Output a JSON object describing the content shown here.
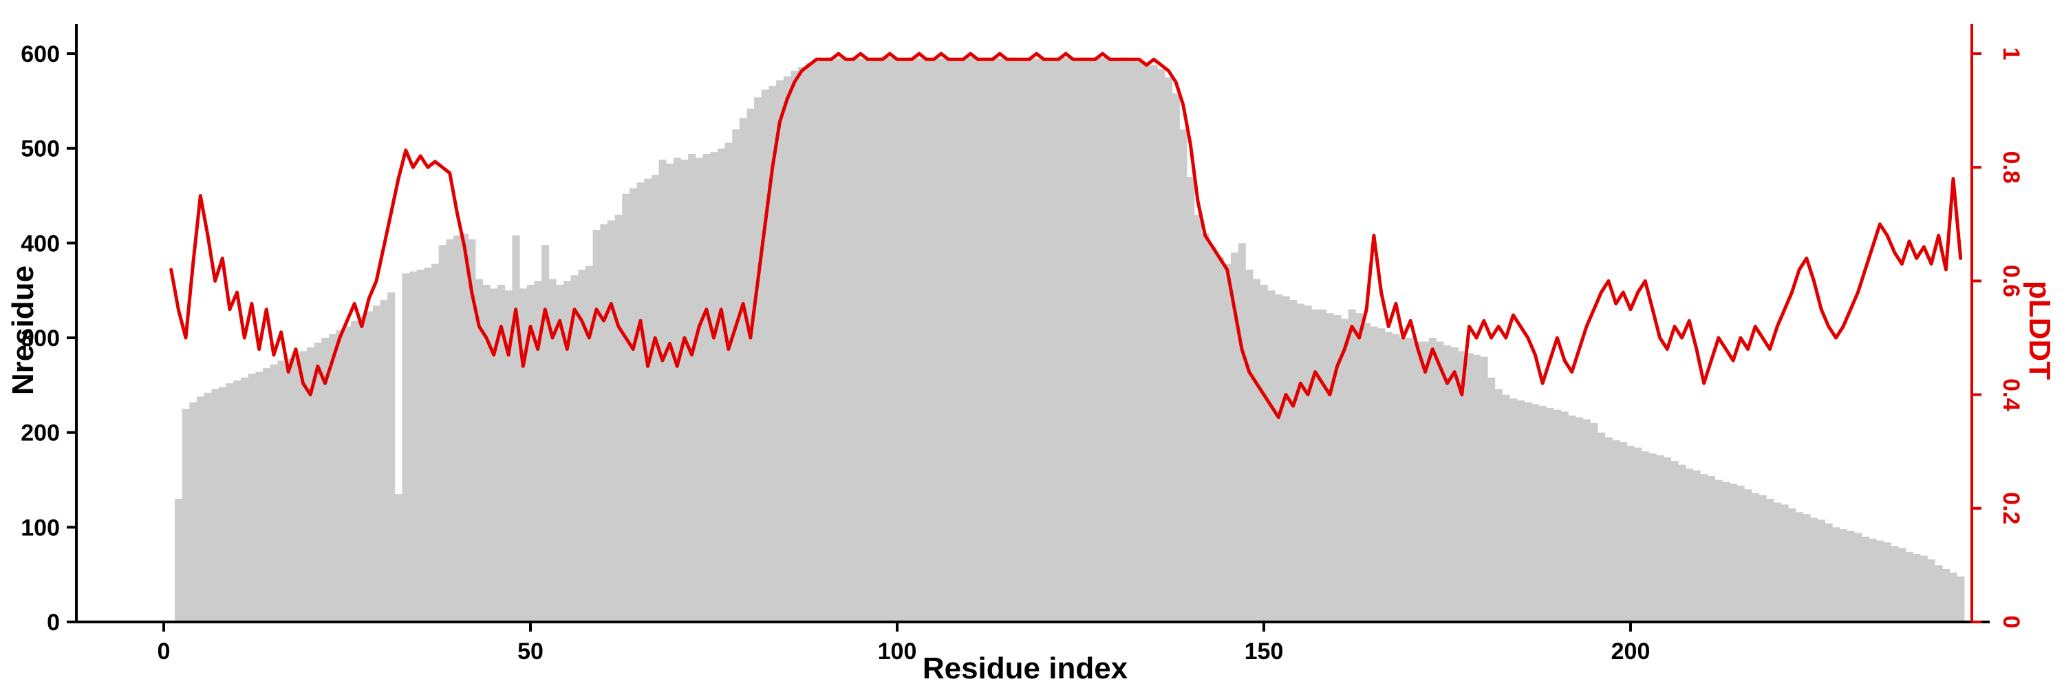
{
  "figure": {
    "background": "#ffffff",
    "bar_color": "#cccccc",
    "line_color": "#e00000",
    "axis_color": "#000000"
  },
  "axes": {
    "x": {
      "label": "Residue index",
      "ticks": [
        "0",
        "50",
        "100",
        "150",
        "200"
      ],
      "range": [
        0,
        246
      ]
    },
    "y_left": {
      "label": "Nresidue",
      "ticks": [
        "0",
        "100",
        "200",
        "300",
        "400",
        "500",
        "600"
      ],
      "range": [
        0,
        600
      ]
    },
    "y_right": {
      "label": "pLDDT",
      "ticks": [
        "0",
        "0.2",
        "0.4",
        "0.6",
        "0.8",
        "1"
      ],
      "range": [
        0,
        1
      ]
    }
  },
  "chart_data": {
    "type": "bar",
    "title": "",
    "xlabel": "Residue index",
    "ylabel_left": "Nresidue",
    "ylabel_right": "pLDDT",
    "xlim": [
      0,
      246
    ],
    "ylim_left": [
      0,
      600
    ],
    "ylim_right": [
      0,
      1
    ],
    "grid": false,
    "legend": "none",
    "x_is_index": true,
    "series": [
      {
        "name": "Nresidue",
        "type": "bar",
        "axis": "left",
        "color": "#cccccc",
        "values": [
          0,
          0,
          130,
          225,
          232,
          238,
          242,
          246,
          248,
          252,
          255,
          258,
          262,
          264,
          268,
          272,
          276,
          278,
          282,
          286,
          290,
          295,
          300,
          304,
          308,
          312,
          318,
          322,
          328,
          334,
          340,
          348,
          135,
          368,
          370,
          372,
          374,
          378,
          398,
          404,
          408,
          410,
          404,
          362,
          356,
          352,
          356,
          350,
          408,
          352,
          356,
          360,
          398,
          362,
          356,
          360,
          366,
          372,
          376,
          414,
          420,
          424,
          430,
          452,
          458,
          464,
          468,
          472,
          488,
          484,
          490,
          488,
          494,
          490,
          494,
          496,
          500,
          506,
          520,
          532,
          542,
          554,
          562,
          566,
          572,
          576,
          582,
          586,
          590,
          592,
          594,
          593,
          595,
          594,
          596,
          595,
          594,
          596,
          595,
          596,
          595,
          594,
          596,
          595,
          596,
          594,
          595,
          596,
          595,
          594,
          596,
          595,
          596,
          594,
          595,
          596,
          595,
          594,
          596,
          595,
          596,
          595,
          594,
          596,
          595,
          594,
          596,
          595,
          596,
          594,
          595,
          596,
          594,
          592,
          590,
          588,
          584,
          575,
          558,
          520,
          470,
          430,
          410,
          396,
          385,
          378,
          390,
          400,
          372,
          362,
          356,
          350,
          346,
          344,
          340,
          336,
          334,
          330,
          330,
          326,
          324,
          320,
          330,
          326,
          316,
          312,
          310,
          306,
          304,
          300,
          300,
          296,
          296,
          300,
          296,
          292,
          290,
          286,
          284,
          282,
          280,
          258,
          246,
          240,
          236,
          234,
          232,
          230,
          228,
          226,
          224,
          222,
          218,
          216,
          214,
          210,
          200,
          195,
          192,
          190,
          186,
          184,
          180,
          178,
          176,
          174,
          170,
          166,
          162,
          160,
          156,
          154,
          150,
          148,
          146,
          144,
          140,
          136,
          134,
          130,
          126,
          124,
          120,
          116,
          114,
          110,
          108,
          104,
          100,
          98,
          96,
          94,
          90,
          88,
          86,
          84,
          80,
          78,
          74,
          72,
          70,
          66,
          60,
          56,
          52,
          48
        ]
      },
      {
        "name": "pLDDT",
        "type": "line",
        "axis": "right",
        "color": "#e00000",
        "values": [
          null,
          0.62,
          0.55,
          0.5,
          0.63,
          0.75,
          0.68,
          0.6,
          0.64,
          0.55,
          0.58,
          0.5,
          0.56,
          0.48,
          0.55,
          0.47,
          0.51,
          0.44,
          0.48,
          0.42,
          0.4,
          0.45,
          0.42,
          0.46,
          0.5,
          0.53,
          0.56,
          0.52,
          0.57,
          0.6,
          0.66,
          0.72,
          0.78,
          0.83,
          0.8,
          0.82,
          0.8,
          0.81,
          0.8,
          0.79,
          0.72,
          0.66,
          0.58,
          0.52,
          0.5,
          0.47,
          0.52,
          0.47,
          0.55,
          0.45,
          0.52,
          0.48,
          0.55,
          0.5,
          0.53,
          0.48,
          0.55,
          0.53,
          0.5,
          0.55,
          0.53,
          0.56,
          0.52,
          0.5,
          0.48,
          0.53,
          0.45,
          0.5,
          0.46,
          0.49,
          0.45,
          0.5,
          0.47,
          0.52,
          0.55,
          0.5,
          0.55,
          0.48,
          0.52,
          0.56,
          0.5,
          0.6,
          0.7,
          0.8,
          0.88,
          0.92,
          0.95,
          0.97,
          0.98,
          0.99,
          0.99,
          0.99,
          1,
          0.99,
          0.99,
          1,
          0.99,
          0.99,
          0.99,
          1,
          0.99,
          0.99,
          0.99,
          1,
          0.99,
          0.99,
          1,
          0.99,
          0.99,
          0.99,
          1,
          0.99,
          0.99,
          0.99,
          1,
          0.99,
          0.99,
          0.99,
          0.99,
          1,
          0.99,
          0.99,
          0.99,
          1,
          0.99,
          0.99,
          0.99,
          0.99,
          1,
          0.99,
          0.99,
          0.99,
          0.99,
          0.99,
          0.98,
          0.99,
          0.98,
          0.97,
          0.95,
          0.91,
          0.84,
          0.74,
          0.68,
          0.66,
          0.64,
          0.62,
          0.55,
          0.48,
          0.44,
          0.42,
          0.4,
          0.38,
          0.36,
          0.4,
          0.38,
          0.42,
          0.4,
          0.44,
          0.42,
          0.4,
          0.45,
          0.48,
          0.52,
          0.5,
          0.55,
          0.68,
          0.58,
          0.52,
          0.56,
          0.5,
          0.53,
          0.48,
          0.44,
          0.48,
          0.45,
          0.42,
          0.44,
          0.4,
          0.52,
          0.5,
          0.53,
          0.5,
          0.52,
          0.5,
          0.54,
          0.52,
          0.5,
          0.47,
          0.42,
          0.46,
          0.5,
          0.46,
          0.44,
          0.48,
          0.52,
          0.55,
          0.58,
          0.6,
          0.56,
          0.58,
          0.55,
          0.58,
          0.6,
          0.55,
          0.5,
          0.48,
          0.52,
          0.5,
          0.53,
          0.48,
          0.42,
          0.46,
          0.5,
          0.48,
          0.46,
          0.5,
          0.48,
          0.52,
          0.5,
          0.48,
          0.52,
          0.55,
          0.58,
          0.62,
          0.64,
          0.6,
          0.55,
          0.52,
          0.5,
          0.52,
          0.55,
          0.58,
          0.62,
          0.66,
          0.7,
          0.68,
          0.65,
          0.63,
          0.67,
          0.64,
          0.66,
          0.63,
          0.68,
          0.62,
          0.78,
          0.64
        ]
      }
    ]
  }
}
